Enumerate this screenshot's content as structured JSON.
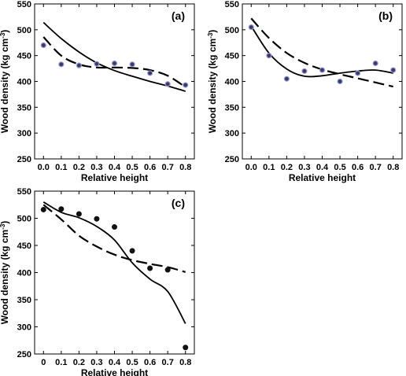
{
  "chart_data": [
    {
      "type": "scatter",
      "panel_label": "(a)",
      "xlabel": "Relative height",
      "ylabel": "Wood density (kg cm",
      "ylabel_sup": "-3",
      "ylabel_close": ")",
      "xlim": [
        -0.05,
        0.85
      ],
      "ylim": [
        250,
        550
      ],
      "x_ticks": [
        0.0,
        0.1,
        0.2,
        0.3,
        0.4,
        0.5,
        0.6,
        0.7,
        0.8
      ],
      "x_tick_labels": [
        "0.0",
        "0.1",
        "0.2",
        "0.3",
        "0.4",
        "0.5",
        "0.6",
        "0.7",
        "0.8"
      ],
      "y_ticks": [
        250,
        300,
        350,
        400,
        450,
        500,
        550
      ],
      "y_tick_labels": [
        "250",
        "300",
        "350",
        "400",
        "450",
        "500",
        "550"
      ],
      "marker": "blue",
      "points": {
        "x": [
          0.0,
          0.1,
          0.2,
          0.3,
          0.4,
          0.5,
          0.6,
          0.7,
          0.8
        ],
        "y": [
          470,
          433,
          431,
          434,
          435,
          433,
          416,
          395,
          393
        ]
      },
      "solid_curve": {
        "x": [
          0.0,
          0.1,
          0.2,
          0.3,
          0.4,
          0.5,
          0.6,
          0.7,
          0.8
        ],
        "y": [
          514,
          483,
          457,
          436,
          421,
          410,
          400,
          391,
          381
        ]
      },
      "dashed_curve": {
        "x": [
          0.0,
          0.1,
          0.2,
          0.3,
          0.4,
          0.5,
          0.6,
          0.7,
          0.8
        ],
        "y": [
          486,
          450,
          433,
          427,
          427,
          426,
          422,
          411,
          389
        ]
      },
      "grid": false
    },
    {
      "type": "scatter",
      "panel_label": "(b)",
      "xlabel": "Relative height",
      "ylabel": "Wood density (kg cm",
      "ylabel_sup": "-3",
      "ylabel_close": ")",
      "xlim": [
        -0.05,
        0.85
      ],
      "ylim": [
        250,
        550
      ],
      "x_ticks": [
        0.0,
        0.1,
        0.2,
        0.3,
        0.4,
        0.5,
        0.6,
        0.7,
        0.8
      ],
      "x_tick_labels": [
        "0.0",
        "0.1",
        "0.2",
        "0.3",
        "0.4",
        "0.5",
        "0.6",
        "0.7",
        "0.8"
      ],
      "y_ticks": [
        250,
        300,
        350,
        400,
        450,
        500,
        550
      ],
      "y_tick_labels": [
        "250",
        "300",
        "350",
        "400",
        "450",
        "500",
        "550"
      ],
      "marker": "blue",
      "points": {
        "x": [
          0.0,
          0.1,
          0.2,
          0.3,
          0.4,
          0.5,
          0.6,
          0.7,
          0.8
        ],
        "y": [
          505,
          450,
          405,
          420,
          422,
          400,
          416,
          435,
          422
        ]
      },
      "solid_curve": {
        "x": [
          0.0,
          0.1,
          0.2,
          0.3,
          0.4,
          0.5,
          0.6,
          0.7,
          0.8
        ],
        "y": [
          507,
          455,
          424,
          410,
          411,
          416,
          420,
          422,
          416
        ]
      },
      "dashed_curve": {
        "x": [
          0.0,
          0.1,
          0.2,
          0.3,
          0.4,
          0.5,
          0.6,
          0.7,
          0.8
        ],
        "y": [
          522,
          484,
          455,
          436,
          423,
          414,
          406,
          398,
          390
        ]
      },
      "grid": false
    },
    {
      "type": "scatter",
      "panel_label": "(c)",
      "xlabel": "Relative height",
      "ylabel": "Wood density (kg cm",
      "ylabel_sup": "-3",
      "ylabel_close": ")",
      "xlim": [
        -0.05,
        0.85
      ],
      "ylim": [
        250,
        550
      ],
      "x_ticks": [
        0.0,
        0.1,
        0.2,
        0.3,
        0.4,
        0.5,
        0.6,
        0.7,
        0.8
      ],
      "x_tick_labels": [
        "0",
        "0.1",
        "0.2",
        "0.3",
        "0.4",
        "0.5",
        "0.6",
        "0.7",
        "0.8"
      ],
      "y_ticks": [
        250,
        300,
        350,
        400,
        450,
        500,
        550
      ],
      "y_tick_labels": [
        "250",
        "300",
        "350",
        "400",
        "450",
        "500",
        "550"
      ],
      "marker": "black",
      "points": {
        "x": [
          0.0,
          0.1,
          0.2,
          0.3,
          0.4,
          0.5,
          0.6,
          0.7,
          0.8
        ],
        "y": [
          516,
          517,
          508,
          499,
          484,
          440,
          408,
          405,
          262
        ]
      },
      "solid_curve": {
        "x": [
          0.0,
          0.1,
          0.2,
          0.3,
          0.4,
          0.5,
          0.6,
          0.7,
          0.8
        ],
        "y": [
          530,
          511,
          501,
          485,
          460,
          418,
          388,
          365,
          306
        ]
      },
      "dashed_curve": {
        "x": [
          0.0,
          0.1,
          0.2,
          0.3,
          0.4,
          0.5,
          0.6,
          0.7,
          0.8
        ],
        "y": [
          525,
          498,
          468,
          448,
          433,
          423,
          416,
          410,
          401
        ]
      },
      "grid": false
    }
  ]
}
